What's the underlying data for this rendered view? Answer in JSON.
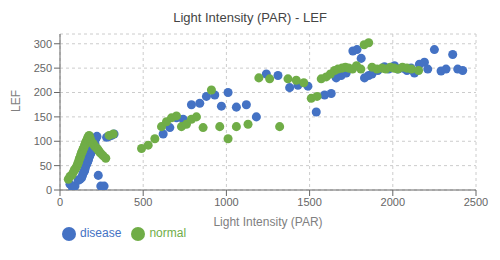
{
  "chart_data": {
    "type": "scatter",
    "title": "Light Intensity (PAR) - LEF",
    "xlabel": "Light Intensity (PAR)",
    "ylabel": "LEF",
    "xlim": [
      0,
      2500
    ],
    "ylim": [
      0,
      320
    ],
    "xticks": [
      0,
      500,
      1000,
      1500,
      2000,
      2500
    ],
    "yticks": [
      0,
      50,
      100,
      150,
      200,
      250,
      300
    ],
    "grid": true,
    "legend": "bottom",
    "series": [
      {
        "name": "disease",
        "color": "#4472c4",
        "values": [
          [
            60,
            12
          ],
          [
            75,
            5
          ],
          [
            90,
            8
          ],
          [
            110,
            20
          ],
          [
            120,
            22
          ],
          [
            130,
            25
          ],
          [
            135,
            30
          ],
          [
            140,
            35
          ],
          [
            145,
            38
          ],
          [
            148,
            40
          ],
          [
            152,
            45
          ],
          [
            155,
            50
          ],
          [
            158,
            52
          ],
          [
            162,
            55
          ],
          [
            165,
            58
          ],
          [
            168,
            60
          ],
          [
            170,
            62
          ],
          [
            172,
            65
          ],
          [
            175,
            68
          ],
          [
            178,
            70
          ],
          [
            180,
            72
          ],
          [
            182,
            74
          ],
          [
            185,
            76
          ],
          [
            188,
            78
          ],
          [
            190,
            80
          ],
          [
            193,
            82
          ],
          [
            195,
            84
          ],
          [
            198,
            86
          ],
          [
            200,
            88
          ],
          [
            203,
            90
          ],
          [
            205,
            92
          ],
          [
            208,
            94
          ],
          [
            210,
            95
          ],
          [
            215,
            105
          ],
          [
            218,
            108
          ],
          [
            222,
            110
          ],
          [
            230,
            30
          ],
          [
            245,
            8
          ],
          [
            255,
            5
          ],
          [
            265,
            8
          ],
          [
            280,
            108
          ],
          [
            295,
            110
          ],
          [
            310,
            112
          ],
          [
            325,
            115
          ],
          [
            620,
            115
          ],
          [
            660,
            128
          ],
          [
            700,
            148
          ],
          [
            740,
            145
          ],
          [
            790,
            175
          ],
          [
            840,
            178
          ],
          [
            880,
            192
          ],
          [
            930,
            195
          ],
          [
            970,
            172
          ],
          [
            1010,
            200
          ],
          [
            1060,
            170
          ],
          [
            1120,
            175
          ],
          [
            1180,
            150
          ],
          [
            1240,
            238
          ],
          [
            1310,
            235
          ],
          [
            1380,
            210
          ],
          [
            1430,
            215
          ],
          [
            1490,
            213
          ],
          [
            1540,
            160
          ],
          [
            1590,
            195
          ],
          [
            1630,
            198
          ],
          [
            1660,
            230
          ],
          [
            1690,
            235
          ],
          [
            1720,
            240
          ],
          [
            1760,
            285
          ],
          [
            1785,
            288
          ],
          [
            1810,
            270
          ],
          [
            1830,
            230
          ],
          [
            1855,
            235
          ],
          [
            1875,
            238
          ],
          [
            1910,
            245
          ],
          [
            1950,
            253
          ],
          [
            1975,
            248
          ],
          [
            2010,
            255
          ],
          [
            2030,
            248
          ],
          [
            2060,
            250
          ],
          [
            2085,
            245
          ],
          [
            2110,
            250
          ],
          [
            2130,
            240
          ],
          [
            2160,
            258
          ],
          [
            2190,
            262
          ],
          [
            2210,
            248
          ],
          [
            2250,
            288
          ],
          [
            2290,
            244
          ],
          [
            2320,
            248
          ],
          [
            2360,
            278
          ],
          [
            2390,
            248
          ],
          [
            2420,
            245
          ]
        ]
      },
      {
        "name": "normal",
        "color": "#70ad47",
        "values": [
          [
            50,
            22
          ],
          [
            60,
            28
          ],
          [
            70,
            30
          ],
          [
            78,
            35
          ],
          [
            85,
            40
          ],
          [
            90,
            42
          ],
          [
            95,
            45
          ],
          [
            100,
            48
          ],
          [
            105,
            52
          ],
          [
            108,
            55
          ],
          [
            112,
            58
          ],
          [
            115,
            62
          ],
          [
            118,
            65
          ],
          [
            122,
            68
          ],
          [
            125,
            72
          ],
          [
            128,
            75
          ],
          [
            132,
            78
          ],
          [
            135,
            80
          ],
          [
            138,
            83
          ],
          [
            142,
            86
          ],
          [
            145,
            88
          ],
          [
            148,
            92
          ],
          [
            152,
            95
          ],
          [
            155,
            98
          ],
          [
            158,
            100
          ],
          [
            162,
            102
          ],
          [
            165,
            105
          ],
          [
            168,
            108
          ],
          [
            172,
            110
          ],
          [
            175,
            112
          ],
          [
            178,
            108
          ],
          [
            182,
            105
          ],
          [
            185,
            100
          ],
          [
            190,
            98
          ],
          [
            195,
            96
          ],
          [
            200,
            95
          ],
          [
            208,
            90
          ],
          [
            215,
            88
          ],
          [
            222,
            85
          ],
          [
            230,
            82
          ],
          [
            238,
            78
          ],
          [
            248,
            74
          ],
          [
            260,
            70
          ],
          [
            275,
            65
          ],
          [
            295,
            112
          ],
          [
            320,
            115
          ],
          [
            490,
            85
          ],
          [
            530,
            92
          ],
          [
            570,
            105
          ],
          [
            610,
            130
          ],
          [
            640,
            140
          ],
          [
            670,
            148
          ],
          [
            700,
            152
          ],
          [
            730,
            130
          ],
          [
            760,
            135
          ],
          [
            790,
            145
          ],
          [
            820,
            150
          ],
          [
            860,
            128
          ],
          [
            910,
            205
          ],
          [
            960,
            130
          ],
          [
            1010,
            105
          ],
          [
            1060,
            130
          ],
          [
            1130,
            135
          ],
          [
            1195,
            230
          ],
          [
            1260,
            228
          ],
          [
            1320,
            130
          ],
          [
            1370,
            228
          ],
          [
            1420,
            225
          ],
          [
            1465,
            220
          ],
          [
            1510,
            188
          ],
          [
            1545,
            192
          ],
          [
            1570,
            228
          ],
          [
            1600,
            232
          ],
          [
            1625,
            238
          ],
          [
            1650,
            245
          ],
          [
            1670,
            248
          ],
          [
            1695,
            250
          ],
          [
            1715,
            252
          ],
          [
            1735,
            250
          ],
          [
            1758,
            248
          ],
          [
            1782,
            255
          ],
          [
            1808,
            248
          ],
          [
            1828,
            298
          ],
          [
            1855,
            302
          ],
          [
            1875,
            252
          ],
          [
            1905,
            248
          ],
          [
            1935,
            250
          ],
          [
            1958,
            248
          ],
          [
            1985,
            252
          ],
          [
            2008,
            250
          ],
          [
            2030,
            248
          ],
          [
            2058,
            252
          ],
          [
            2085,
            250
          ],
          [
            2112,
            248
          ],
          [
            2155,
            245
          ]
        ]
      }
    ]
  }
}
